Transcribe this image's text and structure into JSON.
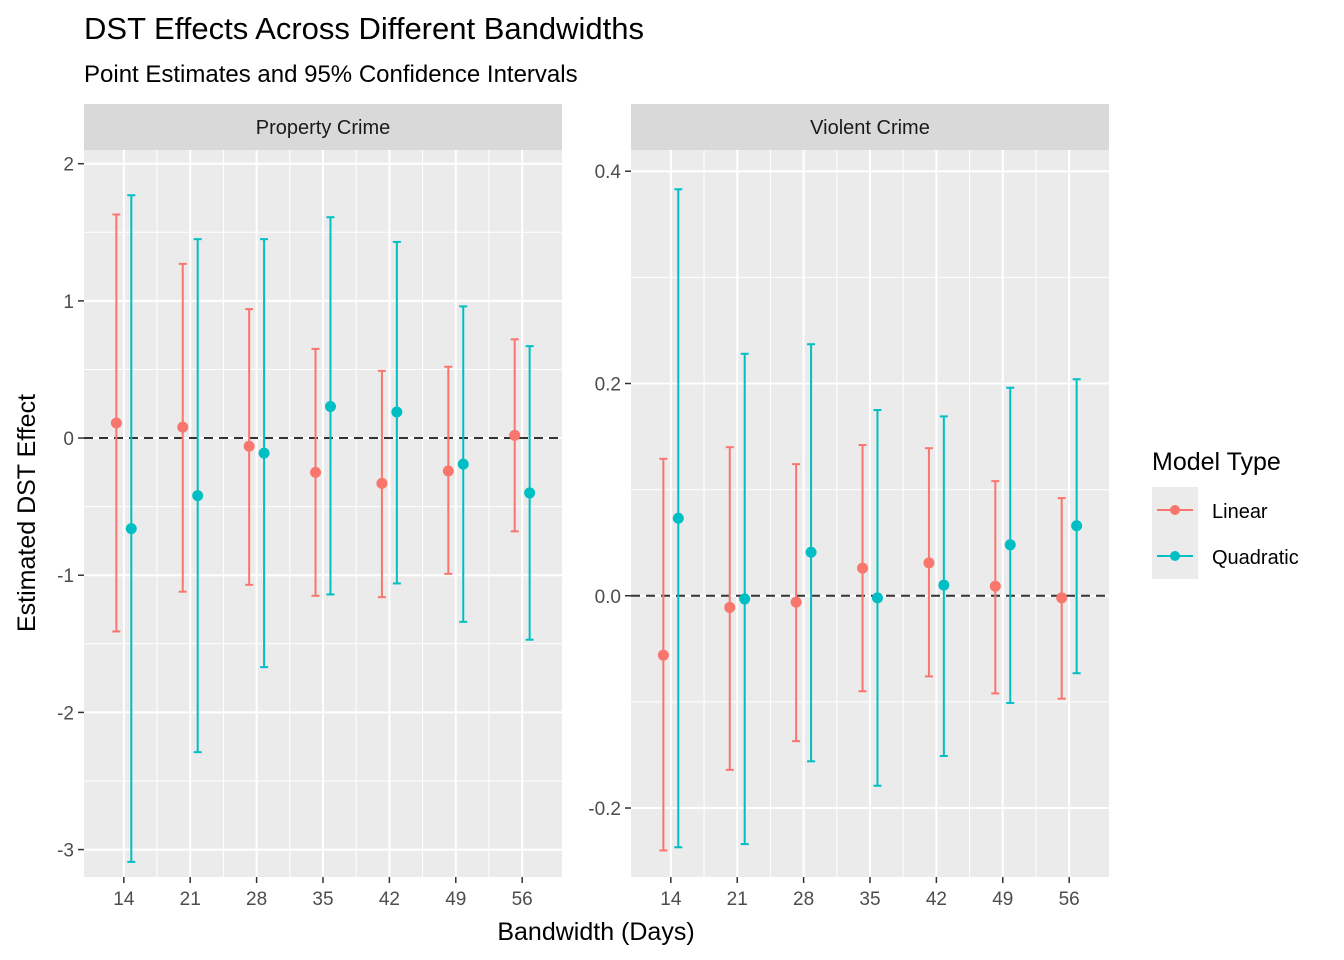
{
  "chart_data": {
    "type": "scatter",
    "title": "DST Effects Across Different Bandwidths",
    "subtitle": "Point Estimates and 95% Confidence Intervals",
    "xlabel": "Bandwidth (Days)",
    "ylabel": "Estimated DST Effect",
    "categories": [
      "14",
      "21",
      "28",
      "35",
      "42",
      "49",
      "56"
    ],
    "legend": {
      "title": "Model Type",
      "position": "right",
      "entries": [
        "Linear",
        "Quadratic"
      ]
    },
    "colors": {
      "Linear": "#F8766D",
      "Quadratic": "#00BFC4"
    },
    "reference_line": 0,
    "grid": true,
    "panels": [
      {
        "strip": "Property Crime",
        "ylim": [
          -3.2,
          2.1
        ],
        "yticks": [
          -3,
          -2,
          -1,
          0,
          1,
          2
        ],
        "ytick_labels": [
          "-3",
          "-2",
          "-1",
          "0",
          "1",
          "2"
        ],
        "series": [
          {
            "name": "Linear",
            "estimate": [
              0.11,
              0.08,
              -0.06,
              -0.25,
              -0.33,
              -0.24,
              0.02
            ],
            "lower": [
              -1.41,
              -1.12,
              -1.07,
              -1.15,
              -1.16,
              -0.99,
              -0.68
            ],
            "upper": [
              1.63,
              1.27,
              0.94,
              0.65,
              0.49,
              0.52,
              0.72
            ]
          },
          {
            "name": "Quadratic",
            "estimate": [
              -0.66,
              -0.42,
              -0.11,
              0.23,
              0.19,
              -0.19,
              -0.4
            ],
            "lower": [
              -3.09,
              -2.29,
              -1.67,
              -1.14,
              -1.06,
              -1.34,
              -1.47
            ],
            "upper": [
              1.77,
              1.45,
              1.45,
              1.61,
              1.43,
              0.96,
              0.67
            ]
          }
        ]
      },
      {
        "strip": "Violent Crime",
        "ylim": [
          -0.265,
          0.42
        ],
        "yticks": [
          -0.2,
          0,
          0.2,
          0.4
        ],
        "ytick_labels": [
          "-0.2",
          "0.0",
          "0.2",
          "0.4"
        ],
        "series": [
          {
            "name": "Linear",
            "estimate": [
              -0.056,
              -0.011,
              -0.006,
              0.026,
              0.031,
              0.009,
              -0.002
            ],
            "lower": [
              -0.24,
              -0.164,
              -0.137,
              -0.09,
              -0.076,
              -0.092,
              -0.097
            ],
            "upper": [
              0.129,
              0.14,
              0.124,
              0.142,
              0.139,
              0.108,
              0.092
            ]
          },
          {
            "name": "Quadratic",
            "estimate": [
              0.073,
              -0.003,
              0.041,
              -0.002,
              0.01,
              0.048,
              0.066
            ],
            "lower": [
              -0.237,
              -0.234,
              -0.156,
              -0.179,
              -0.151,
              -0.101,
              -0.073
            ],
            "upper": [
              0.383,
              0.228,
              0.237,
              0.175,
              0.169,
              0.196,
              0.204
            ]
          }
        ]
      }
    ]
  }
}
